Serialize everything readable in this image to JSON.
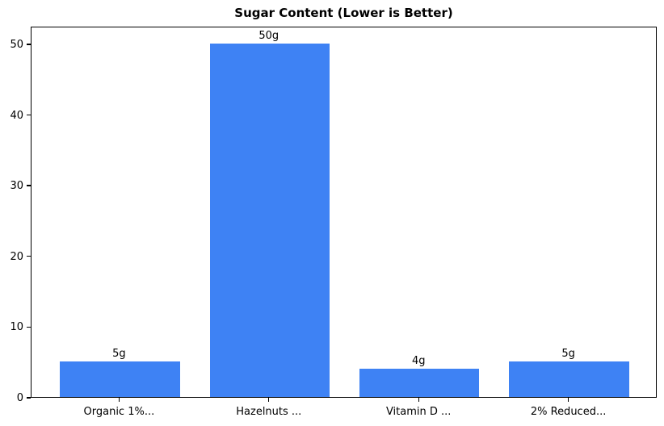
{
  "chart_data": {
    "type": "bar",
    "title": "Sugar Content (Lower is Better)",
    "categories": [
      "Organic 1%...",
      "Hazelnuts ...",
      "Vitamin D ...",
      "2% Reduced..."
    ],
    "values": [
      5,
      50,
      4,
      5
    ],
    "bar_labels": [
      "5g",
      "50g",
      "4g",
      "5g"
    ],
    "xlabel": "",
    "ylabel": "",
    "yticks": [
      0,
      10,
      20,
      30,
      40,
      50
    ],
    "ylim": [
      0,
      52.5
    ],
    "bar_color": "#3e82f4",
    "text_color": "#000000",
    "grid": false,
    "legend": "none",
    "bar_width_fraction": 0.8
  }
}
